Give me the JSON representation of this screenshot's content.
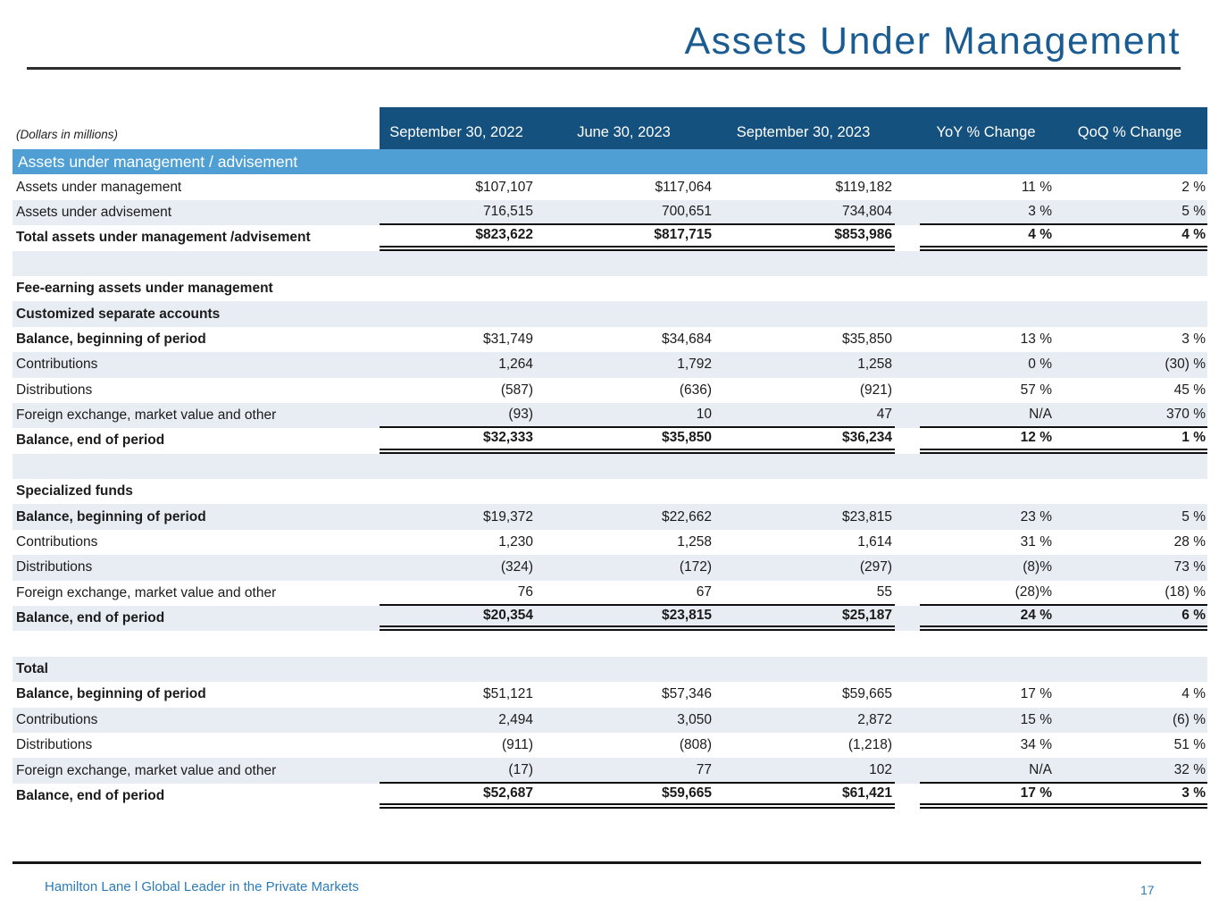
{
  "page": {
    "title": "Assets Under Management",
    "footer": {
      "brand": "Hamilton Lane l Global Leader in the Private Markets",
      "page_number": "17"
    }
  },
  "colors": {
    "header_bg": "#15517e",
    "banner_bg": "#4f9fd5",
    "zebra_bg": "#e7edf3",
    "title_text": "#1a5c92",
    "footer_text": "#2b7bb9"
  },
  "table": {
    "note": "(Dollars in millions)",
    "columns": [
      "September 30, 2022",
      "June 30, 2023",
      "September 30, 2023",
      "YoY % Change",
      "QoQ % Change"
    ],
    "rows": [
      {
        "kind": "banner",
        "label": "Assets under management / advisement"
      },
      {
        "kind": "data",
        "label": "Assets under management",
        "values": [
          "$107,107",
          "$117,064",
          "$119,182",
          "11 %",
          "2 %"
        ]
      },
      {
        "kind": "data",
        "label": "Assets under advisement",
        "rule": true,
        "values": [
          "716,515",
          "700,651",
          "734,804",
          "3 %",
          "5 %"
        ]
      },
      {
        "kind": "total",
        "label": "Total assets under management /advisement",
        "bold": true,
        "values": [
          "$823,622",
          "$817,715",
          "$853,986",
          "4 %",
          "4 %"
        ]
      },
      {
        "kind": "spacer"
      },
      {
        "kind": "section",
        "label": "Fee-earning assets under management",
        "bold": true
      },
      {
        "kind": "section",
        "label": "Customized separate accounts",
        "bold": true
      },
      {
        "kind": "data",
        "label": "Balance, beginning of period",
        "bold": true,
        "values": [
          "$31,749",
          "$34,684",
          "$35,850",
          "13 %",
          "3 %"
        ]
      },
      {
        "kind": "data",
        "label": "Contributions",
        "values": [
          "1,264",
          "1,792",
          "1,258",
          "0 %",
          "(30) %"
        ]
      },
      {
        "kind": "data",
        "label": "Distributions",
        "values": [
          "(587)",
          "(636)",
          "(921)",
          "57 %",
          "45 %"
        ]
      },
      {
        "kind": "data",
        "label": "Foreign exchange, market value and other",
        "rule": true,
        "values": [
          "(93)",
          "10",
          "47",
          "N/A",
          "370 %"
        ]
      },
      {
        "kind": "total",
        "label": "Balance, end of period",
        "bold": true,
        "values": [
          "$32,333",
          "$35,850",
          "$36,234",
          "12 %",
          "1 %"
        ]
      },
      {
        "kind": "spacer"
      },
      {
        "kind": "section",
        "label": "Specialized funds",
        "bold": true
      },
      {
        "kind": "data",
        "label": "Balance, beginning of period",
        "bold": true,
        "values": [
          "$19,372",
          "$22,662",
          "$23,815",
          "23 %",
          "5 %"
        ]
      },
      {
        "kind": "data",
        "label": "Contributions",
        "values": [
          "1,230",
          "1,258",
          "1,614",
          "31 %",
          "28 %"
        ]
      },
      {
        "kind": "data",
        "label": "Distributions",
        "values": [
          "(324)",
          "(172)",
          "(297)",
          "(8)%",
          "73 %"
        ]
      },
      {
        "kind": "data",
        "label": "Foreign exchange, market value and other",
        "rule": true,
        "values": [
          "76",
          "67",
          "55",
          "(28)%",
          "(18) %"
        ]
      },
      {
        "kind": "total",
        "label": "Balance, end of period",
        "bold": true,
        "values": [
          "$20,354",
          "$23,815",
          "$25,187",
          "24 %",
          "6 %"
        ]
      },
      {
        "kind": "spacer"
      },
      {
        "kind": "section",
        "label": "Total",
        "bold": true
      },
      {
        "kind": "data",
        "label": "Balance, beginning of period",
        "bold": true,
        "values": [
          "$51,121",
          "$57,346",
          "$59,665",
          "17 %",
          "4 %"
        ]
      },
      {
        "kind": "data",
        "label": "Contributions",
        "values": [
          "2,494",
          "3,050",
          "2,872",
          "15 %",
          "(6) %"
        ]
      },
      {
        "kind": "data",
        "label": "Distributions",
        "values": [
          "(911)",
          "(808)",
          "(1,218)",
          "34 %",
          "51 %"
        ]
      },
      {
        "kind": "data",
        "label": "Foreign exchange, market value and other",
        "rule": true,
        "values": [
          "(17)",
          "77",
          "102",
          "N/A",
          "32 %"
        ]
      },
      {
        "kind": "total",
        "label": "Balance, end of period",
        "bold": true,
        "values": [
          "$52,687",
          "$59,665",
          "$61,421",
          "17 %",
          "3 %"
        ]
      }
    ]
  }
}
